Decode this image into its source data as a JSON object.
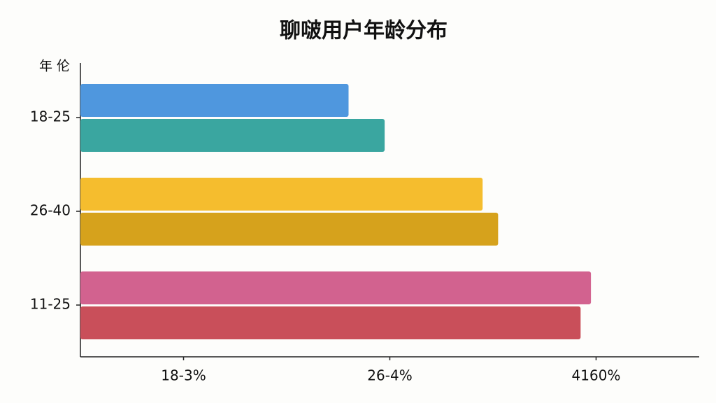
{
  "chart_data": {
    "type": "hbar",
    "title": "聊啵用户年龄分布",
    "y_label": "年 伦",
    "categories": [
      "18-25",
      "26-40",
      "11-25"
    ],
    "series": [
      {
        "colors": [
          "#4f97de",
          "#f5bd2e",
          "#d2628f"
        ],
        "values": [
          26,
          39,
          49.5
        ]
      },
      {
        "colors": [
          "#3aa6a0",
          "#d6a21c",
          "#c94f5a"
        ],
        "values": [
          29.5,
          40.5,
          48.5
        ]
      }
    ],
    "xlim": [
      0,
      60
    ],
    "xticks": [
      {
        "value": 10,
        "label": "18-3%"
      },
      {
        "value": 30,
        "label": "26-4%"
      },
      {
        "value": 50,
        "label": "4160%"
      }
    ],
    "grid": false
  }
}
